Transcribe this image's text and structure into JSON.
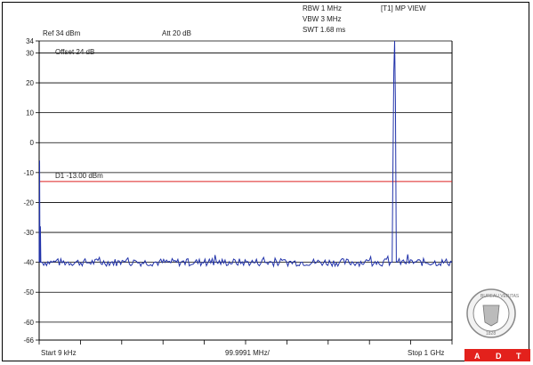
{
  "header": {
    "ref": "Ref 34 dBm",
    "att": "Att  20 dB",
    "rbw": "RBW 1 MHz",
    "vbw": "VBW 3 MHz",
    "swt": "SWT 1.68 ms",
    "trace": "[T1] MP VIEW",
    "offset": "Offset 24 dB"
  },
  "footer": {
    "start": "Start 9 kHz",
    "div": "99.9991 MHz/",
    "stop": "Stop 1 GHz"
  },
  "logos": {
    "seal_top": "BUREAU VERITAS",
    "seal_year": "1828",
    "adt": [
      "A",
      "D",
      "T"
    ]
  },
  "chart_data": {
    "type": "line",
    "x_unit": "MHz",
    "y_unit": "dBm",
    "xlim": [
      0.009,
      1000
    ],
    "ylim": [
      -66,
      34
    ],
    "yticks": [
      34,
      30,
      20,
      10,
      0,
      -10,
      -20,
      -30,
      -40,
      -50,
      -60,
      -66
    ],
    "ytick_labels": [
      "34",
      "30",
      "20",
      "10",
      "0",
      "-10",
      "-20",
      "-30",
      "-40",
      "-50",
      "-60",
      "-66"
    ],
    "grid": true,
    "limit_line": {
      "label": "D1 -13.00 dBm",
      "value": -13,
      "color": "#dd2222"
    },
    "trace_color": "#2233aa",
    "noise_floor": -40,
    "series": [
      {
        "points": [
          [
            0.009,
            -40
          ],
          [
            1,
            -6
          ],
          [
            2,
            -40
          ],
          [
            3,
            -28
          ],
          [
            4,
            -40
          ],
          [
            855,
            -40
          ],
          [
            857,
            -8
          ],
          [
            859,
            24
          ],
          [
            861,
            34
          ],
          [
            863,
            14
          ],
          [
            865,
            -40
          ],
          [
            1000,
            -40
          ]
        ]
      }
    ]
  }
}
